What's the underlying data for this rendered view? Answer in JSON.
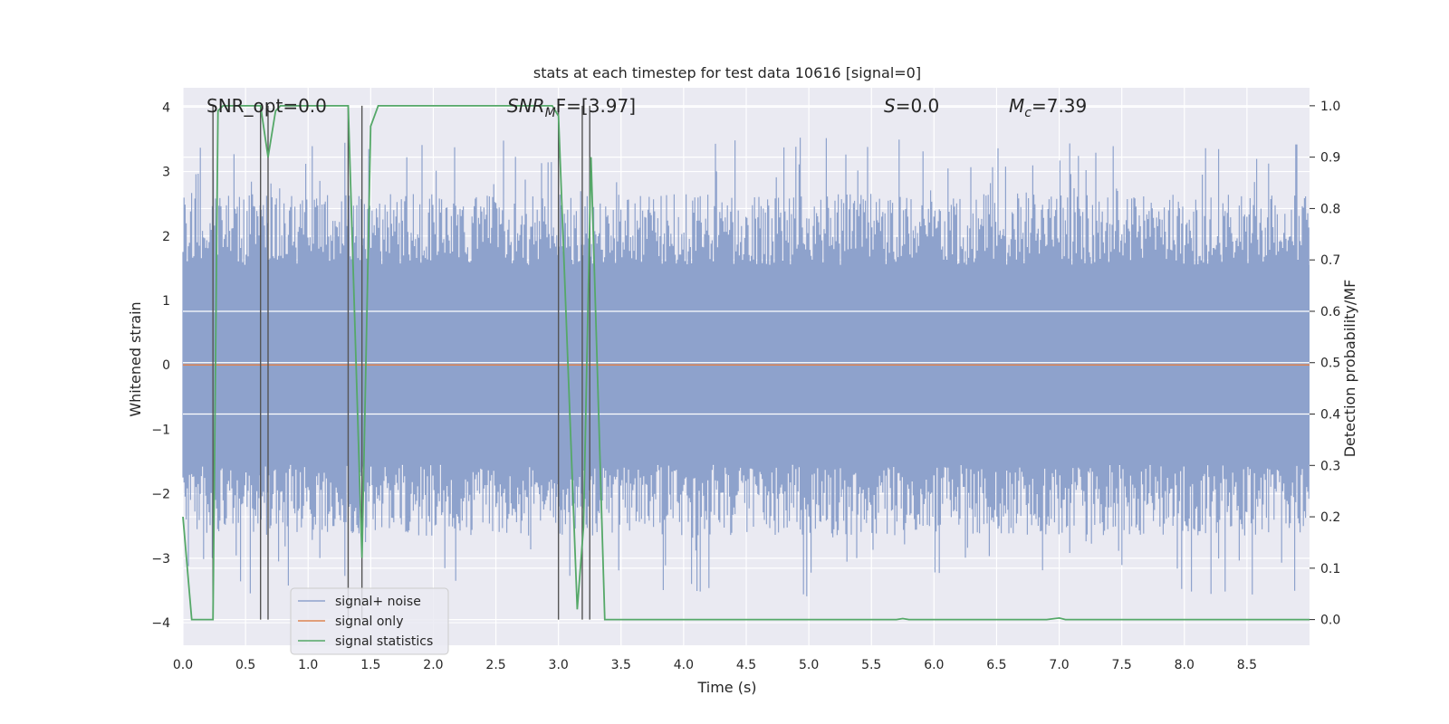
{
  "chart_data": {
    "type": "line",
    "title": "stats at each timestep for test data 10616 [signal=0]",
    "xlabel": "Time (s)",
    "ylabel_left": "Whitened strain",
    "ylabel_right": "Detection probability/MF",
    "xlim": [
      0.0,
      9.0
    ],
    "ylim_left": [
      -4.35,
      4.3
    ],
    "ylim_right": [
      -0.05,
      1.035
    ],
    "x_ticks": [
      "0.0",
      "0.5",
      "1.0",
      "1.5",
      "2.0",
      "2.5",
      "3.0",
      "3.5",
      "4.0",
      "4.5",
      "5.0",
      "5.5",
      "6.0",
      "6.5",
      "7.0",
      "7.5",
      "8.0",
      "8.5"
    ],
    "x_tick_values": [
      0.0,
      0.5,
      1.0,
      1.5,
      2.0,
      2.5,
      3.0,
      3.5,
      4.0,
      4.5,
      5.0,
      5.5,
      6.0,
      6.5,
      7.0,
      7.5,
      8.0,
      8.5
    ],
    "y_ticks_left": [
      "−4",
      "−3",
      "−2",
      "−1",
      "0",
      "1",
      "2",
      "3",
      "4"
    ],
    "y_tick_values_left": [
      -4,
      -3,
      -2,
      -1,
      0,
      1,
      2,
      3,
      4
    ],
    "y_ticks_right": [
      "0.0",
      "0.1",
      "0.2",
      "0.3",
      "0.4",
      "0.5",
      "0.6",
      "0.7",
      "0.8",
      "0.9",
      "1.0"
    ],
    "y_tick_values_right": [
      0.0,
      0.1,
      0.2,
      0.3,
      0.4,
      0.5,
      0.6,
      0.7,
      0.8,
      0.9,
      1.0
    ],
    "annotations": {
      "snr_opt": "SNR_opt=0.0",
      "snr_mf_base": "SNR",
      "snr_mf_sub": "M",
      "snr_mf_rest": "F=[3.97]",
      "s_base": "S",
      "s_rest": "=0.0",
      "mc_base": "M",
      "mc_sub": "c",
      "mc_rest": "=7.39"
    },
    "legend": {
      "placement": "lower-left",
      "entries": [
        "signal+ noise",
        "signal only",
        "signal statistics"
      ]
    },
    "series": [
      {
        "name": "signal+ noise",
        "color": "#8ea2cc",
        "kind": "noise",
        "band": [
          -1.55,
          1.55
        ],
        "peak_range": [
          -3.6,
          3.55
        ],
        "x_range": [
          0.0,
          9.0
        ]
      },
      {
        "name": "signal only",
        "color": "#dd8452",
        "kind": "line",
        "x": [
          0.0,
          9.0
        ],
        "y": [
          0.0,
          0.0
        ]
      },
      {
        "name": "signal statistics",
        "color": "#55a868",
        "kind": "line",
        "axis": "right",
        "x": [
          0.0,
          0.07,
          0.24,
          0.28,
          0.32,
          0.36,
          0.6,
          0.62,
          0.68,
          0.74,
          0.78,
          0.82,
          1.3,
          1.32,
          1.43,
          1.5,
          1.56,
          1.62,
          2.95,
          3.0,
          3.15,
          3.2,
          3.26,
          3.37,
          3.5,
          5.7,
          5.75,
          5.8,
          6.9,
          7.0,
          7.05,
          9.0
        ],
        "y": [
          0.2,
          0.0,
          0.0,
          0.99,
          1.0,
          1.0,
          1.0,
          1.0,
          0.9,
          0.99,
          1.0,
          1.0,
          1.0,
          1.0,
          0.12,
          0.96,
          1.0,
          1.0,
          1.0,
          0.98,
          0.02,
          0.18,
          0.9,
          0.0,
          0.0,
          0.0,
          0.002,
          0.0,
          0.0,
          0.003,
          0.0,
          0.0
        ]
      }
    ],
    "vertical_markers_x": [
      0.24,
      0.62,
      0.68,
      1.32,
      1.43,
      3.0,
      3.19,
      3.25
    ]
  }
}
